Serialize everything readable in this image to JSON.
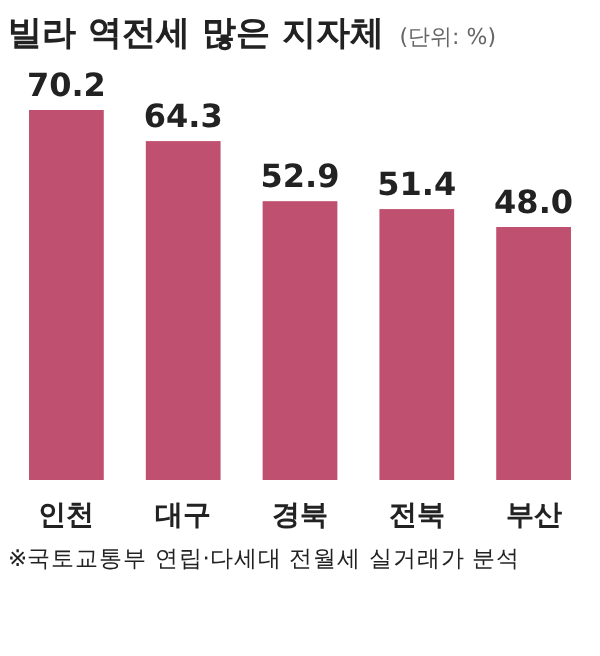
{
  "chart_data": {
    "type": "bar",
    "title": "빌라 역전세 많은 지자체",
    "subtitle": "(단위: %)",
    "categories": [
      "인천",
      "대구",
      "경북",
      "전북",
      "부산"
    ],
    "values": [
      70.2,
      64.3,
      52.9,
      51.4,
      48.0
    ],
    "value_labels": [
      "70.2",
      "64.3",
      "52.9",
      "51.4",
      "48.0"
    ],
    "color": "#c0506f",
    "annotations": [
      "※국토교통부 연립·다세대 전월세 실거래가 분석"
    ]
  }
}
